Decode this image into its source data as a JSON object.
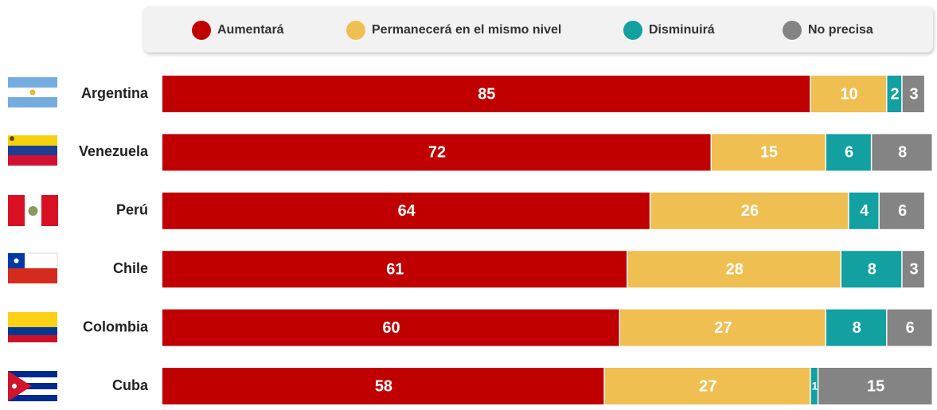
{
  "chart_data": {
    "type": "bar",
    "orientation": "horizontal",
    "stacked": true,
    "categories": [
      "Argentina",
      "Venezuela",
      "Perú",
      "Chile",
      "Colombia",
      "Cuba"
    ],
    "series": [
      {
        "name": "Aumentará",
        "color": "#c00000",
        "values": [
          85,
          72,
          64,
          61,
          60,
          58
        ]
      },
      {
        "name": "Permanecerá en el mismo nivel",
        "color": "#f0bf52",
        "values": [
          10,
          15,
          26,
          28,
          27,
          27
        ]
      },
      {
        "name": "Disminuirá",
        "color": "#12a0a0",
        "values": [
          2,
          6,
          4,
          8,
          8,
          1
        ]
      },
      {
        "name": "No precisa",
        "color": "#848484",
        "values": [
          3,
          8,
          6,
          3,
          6,
          15
        ]
      }
    ],
    "xlim": [
      0,
      101
    ],
    "legend": "top"
  }
}
